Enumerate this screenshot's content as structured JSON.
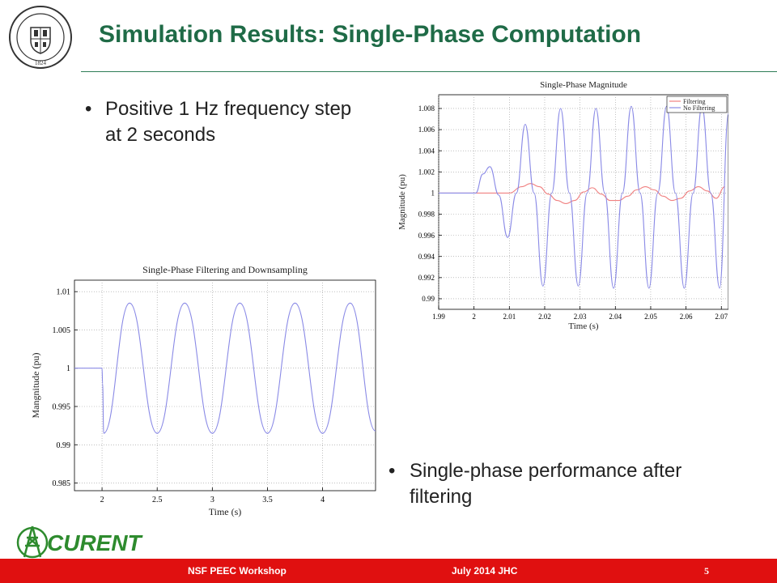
{
  "slide": {
    "title": "Simulation Results: Single-Phase Computation",
    "bullets": [
      {
        "text": "Positive 1 Hz frequency step at 2 seconds"
      },
      {
        "text": "Single-phase performance after filtering"
      }
    ],
    "bullet_glyph": "•"
  },
  "seal": {
    "text": "RENSSELAER POLYTECHNIC INSTITUTE",
    "year": "1824",
    "icon": "university-seal-icon"
  },
  "logo": {
    "text": "CURENT",
    "icon": "transmission-tower-icon",
    "color": "#2e8b2e"
  },
  "footer": {
    "left": "NSF PEEC Workshop",
    "center": "July 2014 JHC",
    "page": "5",
    "color": "#e01010"
  },
  "chart_data": [
    {
      "type": "line",
      "title": "Single-Phase Magnitude",
      "xlabel": "Time (s)",
      "ylabel": "Magnitude (pu)",
      "xlim": [
        1.99,
        2.072
      ],
      "ylim": [
        0.989,
        1.0093
      ],
      "xticks": [
        1.99,
        2,
        2.01,
        2.02,
        2.03,
        2.04,
        2.05,
        2.06,
        2.07
      ],
      "xtick_labels": [
        "1.99",
        "2",
        "2.01",
        "2.02",
        "2.03",
        "2.04",
        "2.05",
        "2.06",
        "2.07"
      ],
      "yticks": [
        0.99,
        0.992,
        0.994,
        0.996,
        0.998,
        1,
        1.002,
        1.004,
        1.006,
        1.008
      ],
      "ytick_labels": [
        "0.99",
        "0.992",
        "0.994",
        "0.996",
        "0.998",
        "1",
        "1.002",
        "1.004",
        "1.006",
        "1.008"
      ],
      "grid": true,
      "legend": "top-right",
      "series": [
        {
          "name": "Filtering",
          "color": "#f08080",
          "x": [
            1.99,
            2.0,
            2.005,
            2.01,
            2.0135,
            2.016,
            2.0185,
            2.021,
            2.0235,
            2.026,
            2.0285,
            2.031,
            2.0335,
            2.036,
            2.0385,
            2.041,
            2.0435,
            2.046,
            2.0485,
            2.051,
            2.0535,
            2.056,
            2.0585,
            2.061,
            2.0635,
            2.066,
            2.0685,
            2.071
          ],
          "y": [
            1.0,
            1.0,
            1.0,
            1.0,
            1.0006,
            1.0009,
            1.0006,
            0.9999,
            0.9993,
            0.999,
            0.9993,
            1.0001,
            1.0005,
            0.9999,
            0.9993,
            0.9993,
            0.9997,
            1.0003,
            1.0006,
            1.0003,
            0.9997,
            0.9993,
            0.9995,
            1.0002,
            1.0006,
            1.0002,
            0.9995,
            1.0006
          ]
        },
        {
          "name": "No Filtering",
          "color": "#8a8ae6",
          "x": [
            1.99,
            2.0,
            2.0005,
            2.0025,
            2.0045,
            2.007,
            2.0095,
            2.012,
            2.0145,
            2.017,
            2.0195,
            2.022,
            2.0245,
            2.027,
            2.0295,
            2.032,
            2.0345,
            2.037,
            2.0395,
            2.042,
            2.0445,
            2.047,
            2.0495,
            2.052,
            2.0545,
            2.057,
            2.0595,
            2.062,
            2.0645,
            2.067,
            2.0695,
            2.072
          ],
          "y": [
            1.0,
            1.0,
            1.0,
            1.0018,
            1.0025,
            0.9998,
            0.9958,
            1.0,
            1.0065,
            1.0,
            0.9912,
            1.0,
            1.008,
            1.0,
            0.9912,
            1.0,
            1.008,
            1.0,
            0.991,
            1.0,
            1.0082,
            1.0,
            0.991,
            1.0,
            1.0082,
            1.0,
            0.991,
            1.0,
            1.0082,
            1.0,
            0.991,
            1.0075
          ]
        }
      ]
    },
    {
      "type": "line",
      "title": "Single-Phase Filtering and Downsampling",
      "xlabel": "Time (s)",
      "ylabel": "Mangnitude (pu)",
      "xlim": [
        1.75,
        4.48
      ],
      "ylim": [
        0.984,
        1.0115
      ],
      "xticks": [
        2,
        2.5,
        3,
        3.5,
        4
      ],
      "xtick_labels": [
        "2",
        "2.5",
        "3",
        "3.5",
        "4"
      ],
      "yticks": [
        0.985,
        0.99,
        0.995,
        1,
        1.005,
        1.01
      ],
      "ytick_labels": [
        "0.985",
        "0.99",
        "0.995",
        "1",
        "1.005",
        "1.01"
      ],
      "grid": true,
      "series": [
        {
          "name": "",
          "color": "#8a8ae6",
          "x": [
            1.75,
            2.0,
            2.005,
            2.015,
            2.25,
            2.5,
            2.75,
            3.0,
            3.25,
            3.5,
            3.75,
            4.0,
            4.25,
            4.48
          ],
          "y": [
            1.0,
            1.0,
            0.998,
            0.9915,
            1.0085,
            0.9915,
            1.0085,
            0.9915,
            1.0085,
            0.9915,
            1.0085,
            0.9915,
            1.0085,
            0.9918
          ]
        }
      ]
    }
  ]
}
